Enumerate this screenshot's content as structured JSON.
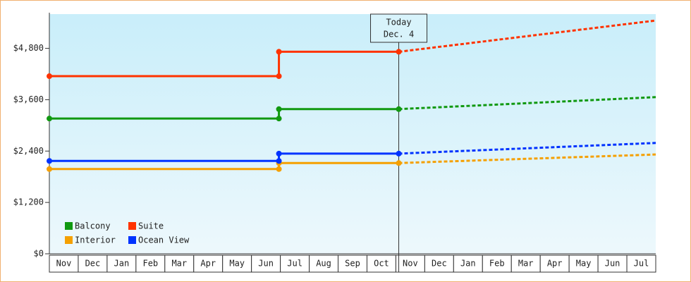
{
  "chart_data": {
    "type": "line",
    "categories": [
      "Nov",
      "Dec",
      "Jan",
      "Feb",
      "Mar",
      "Apr",
      "May",
      "Jun",
      "Jul",
      "Aug",
      "Sep",
      "Oct",
      "Nov",
      "Dec",
      "Jan",
      "Feb",
      "Mar",
      "Apr",
      "May",
      "Jun",
      "Jul"
    ],
    "x": [
      0,
      7.95,
      7.95,
      12.1,
      21
    ],
    "xlim": [
      0,
      21
    ],
    "ylim": [
      0,
      5600
    ],
    "yticks": [
      {
        "value": 0,
        "label": "$0"
      },
      {
        "value": 1200,
        "label": "$1,200"
      },
      {
        "value": 2400,
        "label": "$2,400"
      },
      {
        "value": 3600,
        "label": "$3,600"
      },
      {
        "value": 4800,
        "label": "$4,800"
      }
    ],
    "annotation": {
      "lines": [
        "Today",
        "Dec. 4"
      ],
      "x": 12.1
    },
    "legend": "lower left",
    "series": [
      {
        "name": "Balcony",
        "color": "#119911",
        "values": [
          3160,
          3160,
          3380,
          3380,
          3660
        ]
      },
      {
        "name": "Suite",
        "color": "#ff3300",
        "values": [
          4150,
          4150,
          4720,
          4720,
          5450
        ]
      },
      {
        "name": "Interior",
        "color": "#f5a000",
        "values": [
          1980,
          1980,
          2120,
          2120,
          2320
        ]
      },
      {
        "name": "Ocean View",
        "color": "#0033ff",
        "values": [
          2170,
          2170,
          2340,
          2340,
          2590
        ]
      }
    ]
  }
}
